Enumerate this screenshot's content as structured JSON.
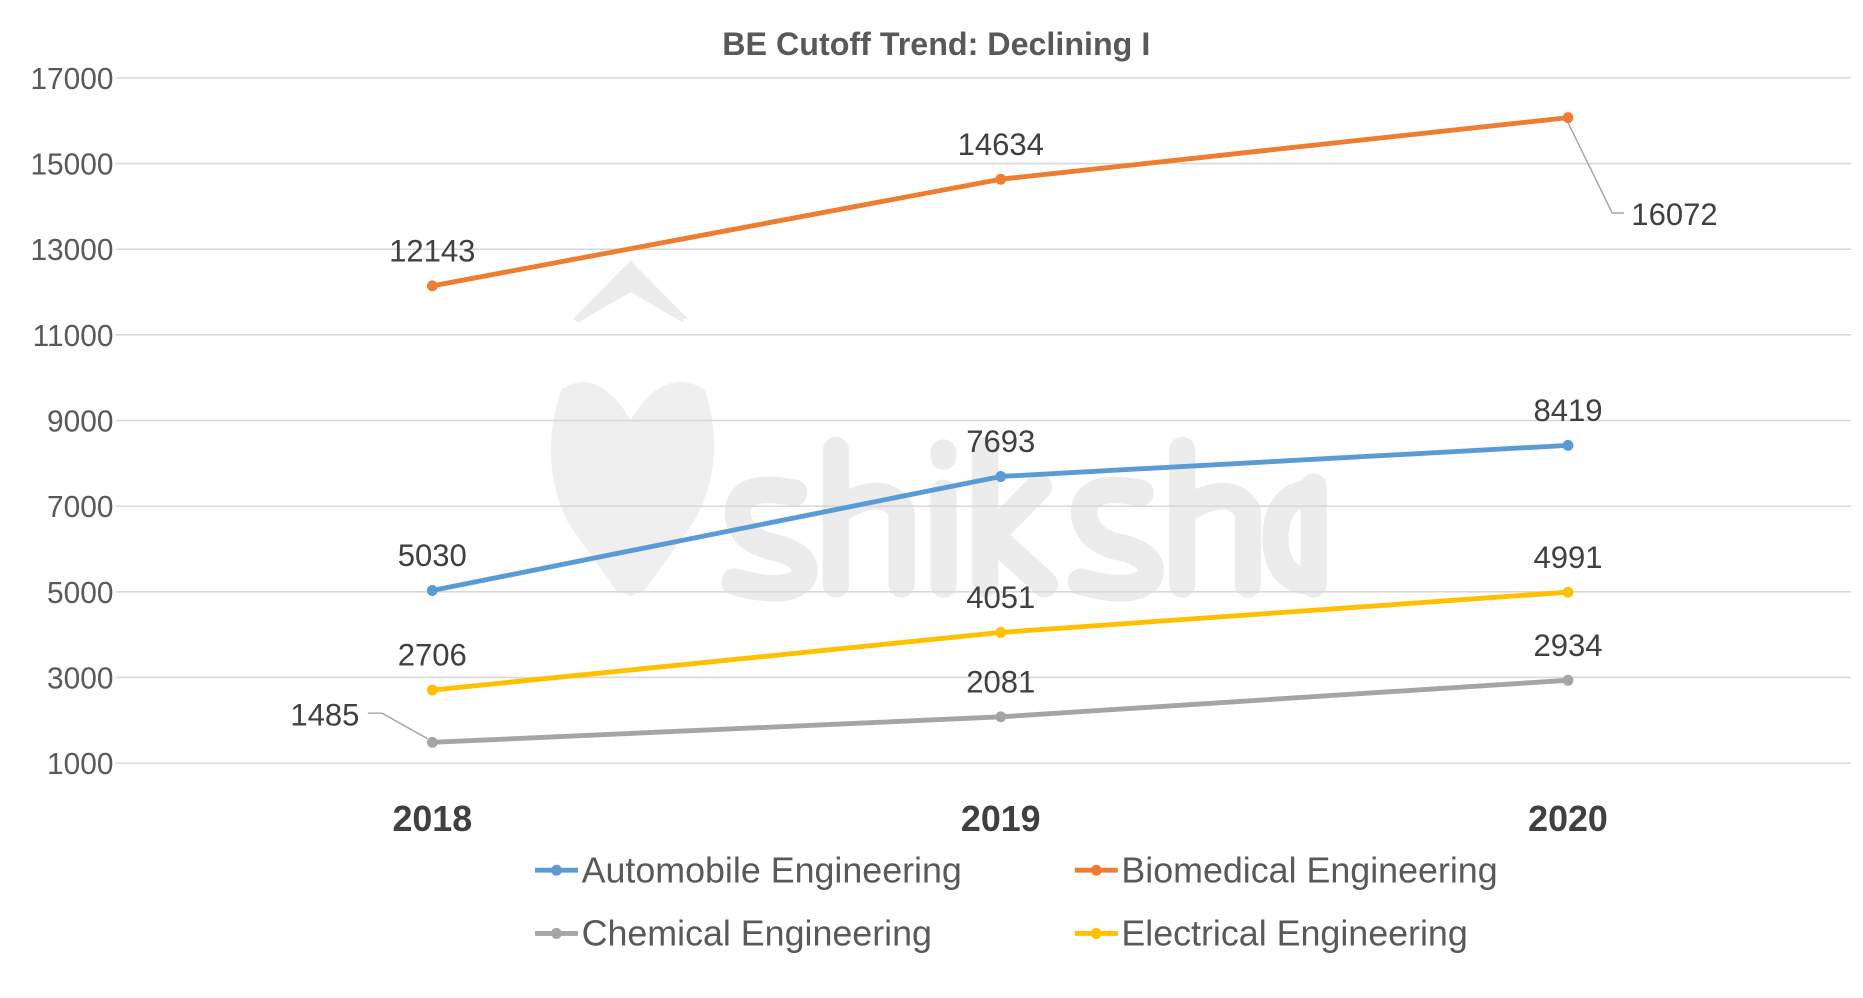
{
  "chart_data": {
    "type": "line",
    "title": "BE Cutoff Trend: Declining I",
    "xlabel": "",
    "ylabel": "",
    "categories": [
      "2018",
      "2019",
      "2020"
    ],
    "ylim": [
      1000,
      17000
    ],
    "yticks": [
      1000,
      3000,
      5000,
      7000,
      9000,
      11000,
      13000,
      15000,
      17000
    ],
    "grid": true,
    "legend_position": "bottom",
    "series": [
      {
        "name": "Automobile Engineering",
        "color": "#5b9bd5",
        "values": [
          5030,
          7693,
          8419
        ]
      },
      {
        "name": "Biomedical Engineering",
        "color": "#ed7d31",
        "values": [
          12143,
          14634,
          16072
        ]
      },
      {
        "name": "Chemical Engineering",
        "color": "#a5a5a5",
        "values": [
          1485,
          2081,
          2934
        ]
      },
      {
        "name": "Electrical Engineering",
        "color": "#ffc000",
        "values": [
          2706,
          4051,
          4991
        ]
      }
    ],
    "watermark": "shiksha"
  }
}
